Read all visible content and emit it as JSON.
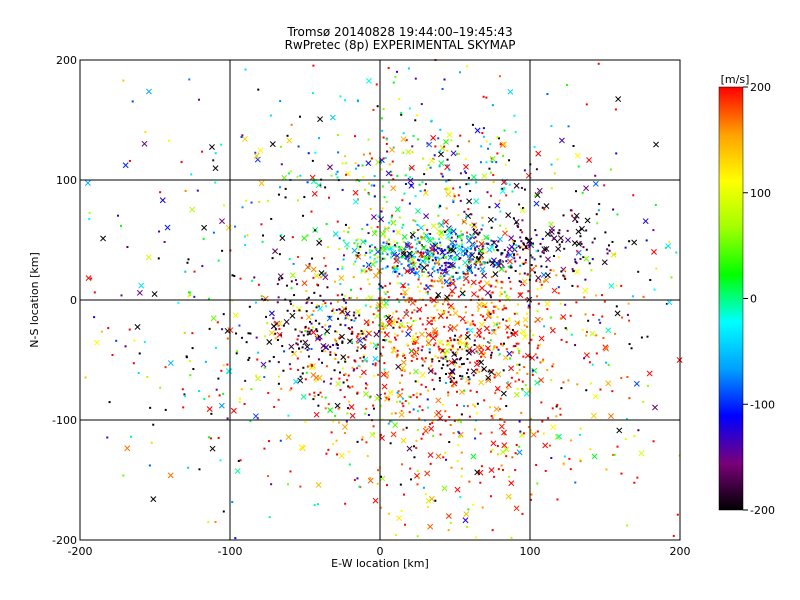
{
  "chart_data": {
    "type": "scatter",
    "title": "Tromsø 20140828 19:44:00–19:45:43",
    "subtitle": "RwPretec (8p) EXPERIMENTAL SKYMAP",
    "xlabel": "E-W location [km]",
    "ylabel": "N-S location [km]",
    "xlim": [
      -200,
      200
    ],
    "ylim": [
      -200,
      200
    ],
    "xticks": [
      "-200",
      "-100",
      "0",
      "100",
      "200"
    ],
    "yticks": [
      "-200",
      "-100",
      "0",
      "100",
      "200"
    ],
    "grid": true,
    "colorbar": {
      "label": "[m/s]",
      "min": -200,
      "max": 200,
      "ticks": [
        "200",
        "100",
        "0",
        "-100",
        "-200"
      ],
      "colors": [
        "#000000",
        "#7a007a",
        "#0000ff",
        "#00a0ff",
        "#00ffff",
        "#00ff00",
        "#a0ff00",
        "#ffff00",
        "#ffa000",
        "#ff0000"
      ]
    },
    "markers": [
      "dot",
      "x"
    ],
    "clusters": [
      {
        "x": 45,
        "y": 35,
        "sx": 25,
        "sy": 10,
        "n": 260,
        "velocity": -110,
        "vspread": 60
      },
      {
        "x": 20,
        "y": 45,
        "sx": 30,
        "sy": 12,
        "n": 200,
        "velocity": 20,
        "vspread": 60
      },
      {
        "x": 60,
        "y": -15,
        "sx": 45,
        "sy": 30,
        "n": 420,
        "velocity": 180,
        "vspread": 40
      },
      {
        "x": 10,
        "y": -40,
        "sx": 40,
        "sy": 40,
        "n": 260,
        "velocity": 170,
        "vspread": 60
      },
      {
        "x": -45,
        "y": -25,
        "sx": 25,
        "sy": 25,
        "n": 160,
        "velocity": -190,
        "vspread": 40
      },
      {
        "x": 100,
        "y": 50,
        "sx": 30,
        "sy": 20,
        "n": 180,
        "velocity": -190,
        "vspread": 30
      },
      {
        "x": 55,
        "y": -55,
        "sx": 15,
        "sy": 12,
        "n": 70,
        "velocity": -195,
        "vspread": 20
      },
      {
        "x": 20,
        "y": 110,
        "sx": 45,
        "sy": 25,
        "n": 200,
        "velocity": 20,
        "vspread": 130
      },
      {
        "x": 60,
        "y": -110,
        "sx": 60,
        "sy": 45,
        "n": 240,
        "velocity": 170,
        "vspread": 60
      },
      {
        "x": 0,
        "y": 0,
        "sx": 110,
        "sy": 100,
        "n": 900,
        "velocity": 0,
        "vspread": 180
      }
    ]
  }
}
